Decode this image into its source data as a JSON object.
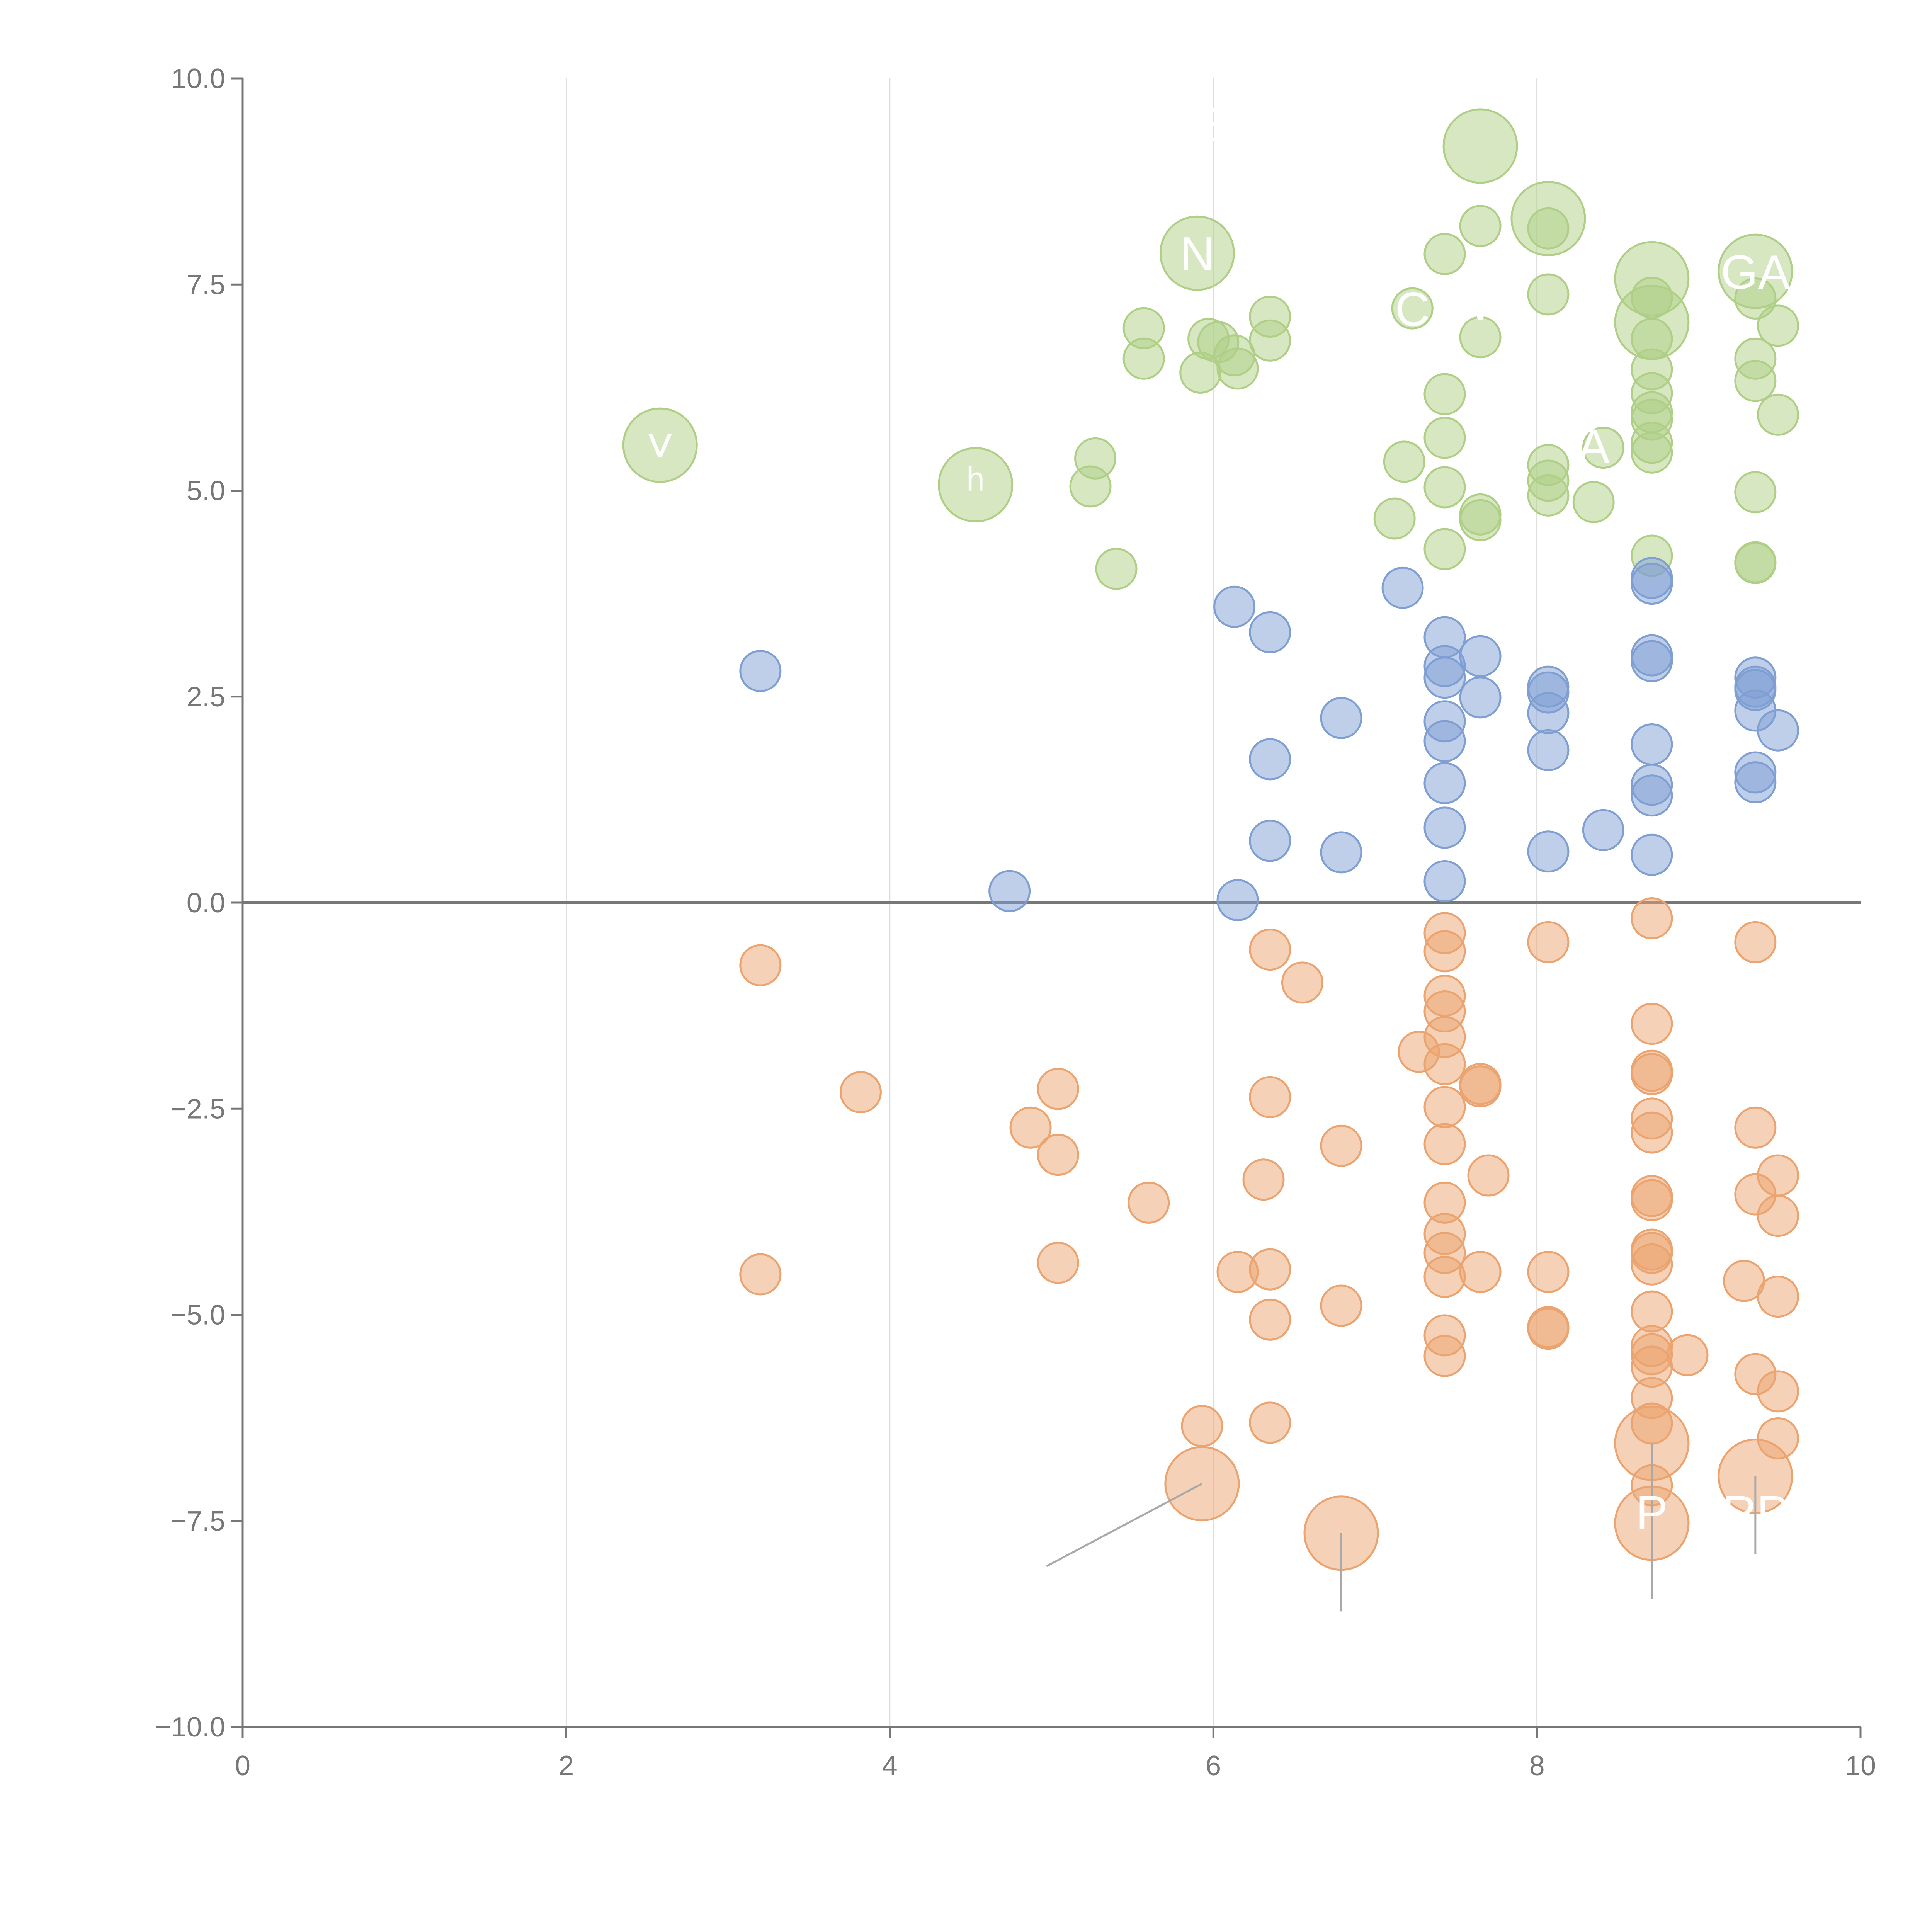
{
  "chart_data": {
    "type": "scatter",
    "title": "",
    "xlabel": "",
    "ylabel": "",
    "xlim": [
      0,
      10
    ],
    "ylim": [
      -10,
      10
    ],
    "x_ticks": [
      "0",
      "2",
      "4",
      "6",
      "8",
      "10"
    ],
    "y_ticks": [
      "10.0",
      "7.5",
      "5.0",
      "2.5",
      "0.0",
      "−2.5",
      "−5.0",
      "−7.5",
      "−10.0"
    ],
    "x_tick_values": [
      0,
      2,
      4,
      6,
      8,
      10
    ],
    "y_tick_values": [
      10,
      7.5,
      5,
      2.5,
      0,
      -2.5,
      -5,
      -7.5,
      -10
    ],
    "grid": "vertical",
    "baseline": 0,
    "colors": {
      "green": "#b0cf86",
      "blue": "#7f9fd3",
      "orange": "#eba46f",
      "axis": "#777777",
      "grid": "#dddddd",
      "zero_line": "#777777",
      "leader": "#a9a9a9"
    },
    "series": [
      {
        "name": "green",
        "size": "small",
        "points": [
          [
            5.24,
            5.05
          ],
          [
            5.27,
            5.39
          ],
          [
            5.4,
            4.05
          ],
          [
            5.57,
            6.97
          ],
          [
            5.57,
            6.6
          ],
          [
            5.92,
            6.43
          ],
          [
            5.97,
            6.84
          ],
          [
            6.03,
            6.8
          ],
          [
            6.13,
            6.64
          ],
          [
            6.15,
            6.48
          ],
          [
            6.35,
            7.11
          ],
          [
            6.35,
            6.82
          ],
          [
            7.12,
            4.66
          ],
          [
            7.18,
            5.35
          ],
          [
            7.23,
            7.21
          ],
          [
            7.43,
            7.87
          ],
          [
            7.43,
            6.17
          ],
          [
            7.43,
            5.64
          ],
          [
            7.43,
            5.04
          ],
          [
            7.43,
            4.29
          ],
          [
            7.65,
            8.21
          ],
          [
            7.65,
            6.86
          ],
          [
            7.65,
            4.71
          ],
          [
            7.65,
            4.64
          ],
          [
            8.07,
            8.18
          ],
          [
            8.07,
            7.38
          ],
          [
            8.07,
            5.31
          ],
          [
            8.07,
            5.12
          ],
          [
            8.07,
            4.94
          ],
          [
            8.35,
            4.86
          ],
          [
            8.41,
            5.52
          ],
          [
            8.71,
            7.34
          ],
          [
            8.71,
            6.84
          ],
          [
            8.71,
            6.47
          ],
          [
            8.71,
            6.18
          ],
          [
            8.71,
            5.86
          ],
          [
            8.71,
            5.58
          ],
          [
            8.71,
            5.46
          ],
          [
            8.71,
            4.21
          ],
          [
            8.71,
            5.95
          ],
          [
            9.35,
            7.33
          ],
          [
            9.35,
            6.6
          ],
          [
            9.35,
            6.33
          ],
          [
            9.35,
            4.98
          ],
          [
            9.35,
            4.13
          ],
          [
            9.35,
            4.12
          ],
          [
            9.49,
            7.0
          ],
          [
            9.49,
            5.92
          ]
        ]
      },
      {
        "name": "green",
        "size": "large",
        "points": [
          [
            2.58,
            5.55
          ],
          [
            4.53,
            5.07
          ],
          [
            5.9,
            7.88
          ],
          [
            7.65,
            9.18
          ],
          [
            8.07,
            8.3
          ],
          [
            8.71,
            7.57
          ],
          [
            8.71,
            7.04
          ],
          [
            9.35,
            7.66
          ]
        ]
      },
      {
        "name": "blue",
        "size": "small",
        "points": [
          [
            3.2,
            2.81
          ],
          [
            4.74,
            0.14
          ],
          [
            6.13,
            3.59
          ],
          [
            6.15,
            0.03
          ],
          [
            6.35,
            3.28
          ],
          [
            6.35,
            1.74
          ],
          [
            6.35,
            0.75
          ],
          [
            6.79,
            2.24
          ],
          [
            6.79,
            0.61
          ],
          [
            7.17,
            3.82
          ],
          [
            7.43,
            3.22
          ],
          [
            7.43,
            2.87
          ],
          [
            7.43,
            2.73
          ],
          [
            7.43,
            2.2
          ],
          [
            7.43,
            1.96
          ],
          [
            7.43,
            1.45
          ],
          [
            7.43,
            0.91
          ],
          [
            7.43,
            0.26
          ],
          [
            7.65,
            2.99
          ],
          [
            7.65,
            2.49
          ],
          [
            8.07,
            2.62
          ],
          [
            8.07,
            2.55
          ],
          [
            8.07,
            2.3
          ],
          [
            8.07,
            1.85
          ],
          [
            8.07,
            0.62
          ],
          [
            8.41,
            0.88
          ],
          [
            8.71,
            3.94
          ],
          [
            8.71,
            3.87
          ],
          [
            8.71,
            3.0
          ],
          [
            8.71,
            2.93
          ],
          [
            8.71,
            1.92
          ],
          [
            8.71,
            1.43
          ],
          [
            8.71,
            1.3
          ],
          [
            8.71,
            0.58
          ],
          [
            9.35,
            2.73
          ],
          [
            9.35,
            2.62
          ],
          [
            9.35,
            2.58
          ],
          [
            9.35,
            2.33
          ],
          [
            9.35,
            1.58
          ],
          [
            9.35,
            1.46
          ],
          [
            9.49,
            2.09
          ]
        ]
      },
      {
        "name": "orange",
        "size": "small",
        "points": [
          [
            3.2,
            -0.76
          ],
          [
            3.2,
            -4.51
          ],
          [
            3.82,
            -2.3
          ],
          [
            4.87,
            -2.73
          ],
          [
            5.04,
            -2.26
          ],
          [
            5.04,
            -3.06
          ],
          [
            5.04,
            -4.37
          ],
          [
            5.6,
            -3.64
          ],
          [
            5.93,
            -6.35
          ],
          [
            6.15,
            -4.48
          ],
          [
            6.31,
            -3.36
          ],
          [
            6.35,
            -0.57
          ],
          [
            6.35,
            -2.36
          ],
          [
            6.35,
            -4.45
          ],
          [
            6.35,
            -5.06
          ],
          [
            6.35,
            -6.31
          ],
          [
            6.55,
            -0.97
          ],
          [
            6.79,
            -2.95
          ],
          [
            6.79,
            -4.89
          ],
          [
            7.27,
            -1.81
          ],
          [
            7.43,
            -0.37
          ],
          [
            7.43,
            -0.59
          ],
          [
            7.43,
            -1.13
          ],
          [
            7.43,
            -1.32
          ],
          [
            7.43,
            -1.63
          ],
          [
            7.43,
            -1.96
          ],
          [
            7.43,
            -2.48
          ],
          [
            7.43,
            -2.93
          ],
          [
            7.43,
            -3.64
          ],
          [
            7.43,
            -4.02
          ],
          [
            7.43,
            -4.25
          ],
          [
            7.43,
            -4.54
          ],
          [
            7.43,
            -5.25
          ],
          [
            7.43,
            -5.5
          ],
          [
            7.65,
            -2.2
          ],
          [
            7.65,
            -2.23
          ],
          [
            7.65,
            -4.48
          ],
          [
            7.7,
            -3.31
          ],
          [
            8.07,
            -0.48
          ],
          [
            8.07,
            -4.48
          ],
          [
            8.07,
            -5.15
          ],
          [
            8.07,
            -5.17
          ],
          [
            8.71,
            -0.19
          ],
          [
            8.71,
            -1.47
          ],
          [
            8.71,
            -2.04
          ],
          [
            8.71,
            -2.08
          ],
          [
            8.71,
            -2.62
          ],
          [
            8.71,
            -2.79
          ],
          [
            8.71,
            -3.56
          ],
          [
            8.71,
            -3.61
          ],
          [
            8.71,
            -4.21
          ],
          [
            8.71,
            -4.25
          ],
          [
            8.71,
            -4.39
          ],
          [
            8.71,
            -4.96
          ],
          [
            8.71,
            -5.38
          ],
          [
            8.71,
            -5.48
          ],
          [
            8.71,
            -5.63
          ],
          [
            8.71,
            -6.01
          ],
          [
            8.71,
            -6.32
          ],
          [
            8.71,
            -7.07
          ],
          [
            8.93,
            -5.49
          ],
          [
            9.28,
            -4.59
          ],
          [
            9.35,
            -0.48
          ],
          [
            9.35,
            -2.73
          ],
          [
            9.35,
            -3.54
          ],
          [
            9.35,
            -5.72
          ],
          [
            9.49,
            -3.31
          ],
          [
            9.49,
            -3.8
          ],
          [
            9.49,
            -4.78
          ],
          [
            9.49,
            -5.93
          ],
          [
            9.49,
            -6.5
          ]
        ]
      },
      {
        "name": "orange",
        "size": "large",
        "points": [
          [
            5.93,
            -7.05
          ],
          [
            6.79,
            -7.65
          ],
          [
            8.71,
            -6.56
          ],
          [
            8.71,
            -7.53
          ],
          [
            9.35,
            -6.96
          ]
        ]
      }
    ],
    "annotations": [
      {
        "text": "˅",
        "x": 2.58,
        "y": 5.55
      },
      {
        "text": "ʰ",
        "x": 4.53,
        "y": 5.07
      },
      {
        "text": "N",
        "x": 5.9,
        "y": 7.88
      },
      {
        "text": "E",
        "x": 5.98,
        "y": 9.45
      },
      {
        "text": "C",
        "x": 7.23,
        "y": 7.21
      },
      {
        "text": "˅",
        "x": 7.65,
        "y": 7.21
      },
      {
        "text": "A",
        "x": 8.35,
        "y": 5.55
      },
      {
        "text": "GA",
        "x": 9.35,
        "y": 7.66
      },
      {
        "text": "P",
        "x": 8.71,
        "y": -7.39
      },
      {
        "text": "RP",
        "x": 9.35,
        "y": -7.39
      }
    ],
    "leader_lines": [
      [
        [
          5.93,
          -7.05
        ],
        [
          4.97,
          -8.05
        ]
      ],
      [
        [
          6.79,
          -7.65
        ],
        [
          6.79,
          -8.6
        ]
      ],
      [
        [
          8.71,
          -6.56
        ],
        [
          8.71,
          -7.85
        ]
      ],
      [
        [
          8.71,
          -7.53
        ],
        [
          8.71,
          -8.45
        ]
      ],
      [
        [
          9.35,
          -6.96
        ],
        [
          9.35,
          -7.9
        ]
      ]
    ]
  }
}
